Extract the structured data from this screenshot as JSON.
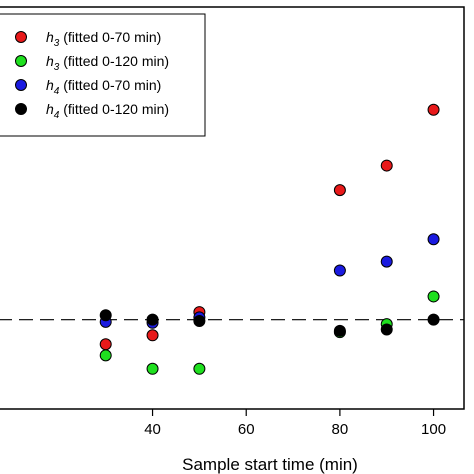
{
  "chart_data": {
    "type": "scatter",
    "title": "",
    "xlabel": "Sample start time (min)",
    "ylabel": "",
    "xlim": [
      7,
      106.5
    ],
    "ylim": [
      -2.0,
      7.0
    ],
    "xticks": [
      40,
      60,
      80,
      100
    ],
    "xtick_labels": [
      "40",
      "60",
      "80",
      "100"
    ],
    "reference_line": {
      "y": 0,
      "style": "dashed"
    },
    "legend_position": "top-left",
    "series": [
      {
        "name": "h3 (fitted 0-70 min)",
        "symbol": "h",
        "subscript": "3",
        "rest": " (fitted 0-70 min)",
        "color": "#e8191a",
        "x": [
          30,
          40,
          50,
          80,
          90,
          100
        ],
        "y": [
          -0.55,
          -0.35,
          0.17,
          2.9,
          3.45,
          4.7
        ]
      },
      {
        "name": "h3 (fitted 0-120 min)",
        "symbol": "h",
        "subscript": "3",
        "rest": " (fitted 0-120 min)",
        "color": "#1fe01f",
        "x": [
          30,
          40,
          50,
          80,
          90,
          100
        ],
        "y": [
          -0.8,
          -1.1,
          -1.1,
          -0.28,
          -0.1,
          0.52
        ]
      },
      {
        "name": "h4 (fitted 0-70 min)",
        "symbol": "h",
        "subscript": "4",
        "rest": " (fitted 0-70 min)",
        "color": "#1a1ae0",
        "x": [
          30,
          40,
          50,
          80,
          90,
          100
        ],
        "y": [
          -0.05,
          -0.07,
          0.05,
          1.1,
          1.3,
          1.8
        ]
      },
      {
        "name": "h4 (fitted 0-120 min)",
        "symbol": "h",
        "subscript": "4",
        "rest": " (fitted 0-120 min)",
        "color": "#000000",
        "x": [
          30,
          40,
          50,
          80,
          90,
          100
        ],
        "y": [
          0.1,
          0.0,
          -0.03,
          -0.25,
          -0.22,
          0.0
        ]
      }
    ]
  }
}
